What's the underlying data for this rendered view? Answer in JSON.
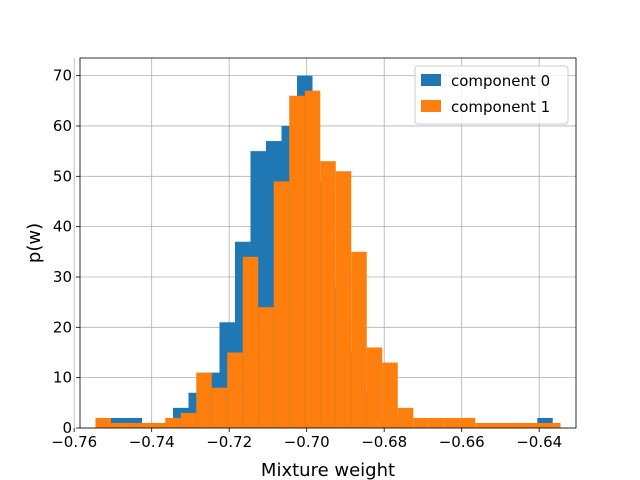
{
  "chart_data": {
    "type": "bar",
    "title": "",
    "xlabel": "Mixture weight",
    "ylabel": "p(w)",
    "xlim": [
      -0.7585,
      -0.6305
    ],
    "ylim": [
      0,
      73.5
    ],
    "grid": true,
    "legend_position": "top-right",
    "xticks": [
      -0.76,
      -0.74,
      -0.72,
      -0.7,
      -0.68,
      -0.66,
      -0.64
    ],
    "xtick_labels": [
      "−0.76",
      "−0.74",
      "−0.72",
      "−0.70",
      "−0.68",
      "−0.66",
      "−0.64"
    ],
    "yticks": [
      0,
      10,
      20,
      30,
      40,
      50,
      60,
      70
    ],
    "ytick_labels": [
      "0",
      "10",
      "20",
      "30",
      "40",
      "50",
      "60",
      "70"
    ],
    "series": [
      {
        "name": "component 0",
        "color": "#1f77b4",
        "bins": [
          {
            "x0": -0.7545,
            "x1": -0.7505,
            "y": 1
          },
          {
            "x0": -0.7505,
            "x1": -0.7465,
            "y": 2
          },
          {
            "x0": -0.7465,
            "x1": -0.7425,
            "y": 2
          },
          {
            "x0": -0.7425,
            "x1": -0.7385,
            "y": 1
          },
          {
            "x0": -0.7385,
            "x1": -0.7345,
            "y": 1
          },
          {
            "x0": -0.7345,
            "x1": -0.7305,
            "y": 4
          },
          {
            "x0": -0.7305,
            "x1": -0.7265,
            "y": 7
          },
          {
            "x0": -0.7265,
            "x1": -0.7225,
            "y": 11
          },
          {
            "x0": -0.7225,
            "x1": -0.7185,
            "y": 21
          },
          {
            "x0": -0.7185,
            "x1": -0.7145,
            "y": 37
          },
          {
            "x0": -0.7145,
            "x1": -0.7105,
            "y": 55
          },
          {
            "x0": -0.7105,
            "x1": -0.7065,
            "y": 57
          },
          {
            "x0": -0.7065,
            "x1": -0.7025,
            "y": 60
          },
          {
            "x0": -0.7025,
            "x1": -0.6985,
            "y": 70
          },
          {
            "x0": -0.6985,
            "x1": -0.6945,
            "y": 49
          },
          {
            "x0": -0.6945,
            "x1": -0.6905,
            "y": 28
          },
          {
            "x0": -0.6905,
            "x1": -0.6865,
            "y": 15
          },
          {
            "x0": -0.6865,
            "x1": -0.6825,
            "y": 7
          },
          {
            "x0": -0.6825,
            "x1": -0.6785,
            "y": 2
          },
          {
            "x0": -0.6785,
            "x1": -0.6745,
            "y": 1
          },
          {
            "x0": -0.6405,
            "x1": -0.6365,
            "y": 2
          }
        ]
      },
      {
        "name": "component 1",
        "color": "#ff7f0e",
        "bins": [
          {
            "x0": -0.7545,
            "x1": -0.7505,
            "y": 2
          },
          {
            "x0": -0.7505,
            "x1": -0.7445,
            "y": 1
          },
          {
            "x0": -0.7445,
            "x1": -0.7365,
            "y": 1
          },
          {
            "x0": -0.7365,
            "x1": -0.7325,
            "y": 2
          },
          {
            "x0": -0.7325,
            "x1": -0.7285,
            "y": 3
          },
          {
            "x0": -0.7285,
            "x1": -0.7245,
            "y": 11
          },
          {
            "x0": -0.7245,
            "x1": -0.7205,
            "y": 8
          },
          {
            "x0": -0.7205,
            "x1": -0.7165,
            "y": 15
          },
          {
            "x0": -0.7165,
            "x1": -0.7125,
            "y": 34
          },
          {
            "x0": -0.7125,
            "x1": -0.7085,
            "y": 24
          },
          {
            "x0": -0.7085,
            "x1": -0.7045,
            "y": 49
          },
          {
            "x0": -0.7045,
            "x1": -0.7005,
            "y": 66
          },
          {
            "x0": -0.7005,
            "x1": -0.6965,
            "y": 67
          },
          {
            "x0": -0.6965,
            "x1": -0.6925,
            "y": 53
          },
          {
            "x0": -0.6925,
            "x1": -0.6885,
            "y": 51
          },
          {
            "x0": -0.6885,
            "x1": -0.6845,
            "y": 35
          },
          {
            "x0": -0.6845,
            "x1": -0.6805,
            "y": 16
          },
          {
            "x0": -0.6805,
            "x1": -0.6765,
            "y": 13
          },
          {
            "x0": -0.6765,
            "x1": -0.6725,
            "y": 4
          },
          {
            "x0": -0.6725,
            "x1": -0.6685,
            "y": 2
          },
          {
            "x0": -0.6685,
            "x1": -0.6645,
            "y": 2
          },
          {
            "x0": -0.6645,
            "x1": -0.6605,
            "y": 2
          },
          {
            "x0": -0.6605,
            "x1": -0.6565,
            "y": 2
          },
          {
            "x0": -0.6565,
            "x1": -0.6345,
            "y": 1
          }
        ]
      }
    ]
  }
}
